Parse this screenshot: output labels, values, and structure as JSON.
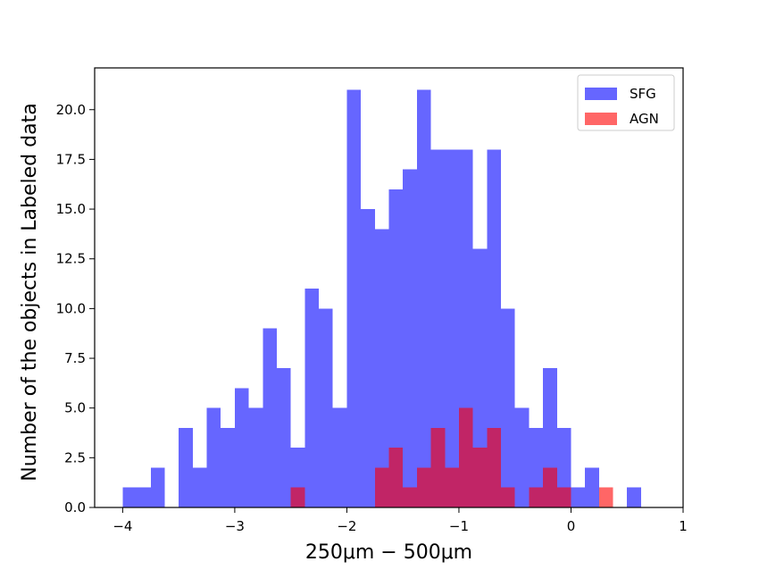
{
  "chart_data": {
    "type": "histogram",
    "xlabel": "250μm − 500μm",
    "ylabel": "Number of the objects in Labeled data",
    "xlim": [
      -4.25,
      1.0
    ],
    "ylim": [
      0,
      22.1
    ],
    "bin_width": 0.125,
    "x_ticks": [
      -4,
      -3,
      -2,
      -1,
      0,
      1
    ],
    "x_tick_labels": [
      "−4",
      "−3",
      "−2",
      "−1",
      "0",
      "1"
    ],
    "y_ticks": [
      0,
      2.5,
      5,
      7.5,
      10,
      12.5,
      15,
      17.5,
      20
    ],
    "y_tick_labels": [
      "0.0",
      "2.5",
      "5.0",
      "7.5",
      "10.0",
      "12.5",
      "15.0",
      "17.5",
      "20.0"
    ],
    "grid": false,
    "legend_position": "top-right",
    "series": [
      {
        "name": "SFG",
        "color": "#6666ff",
        "bins": [
          {
            "x": -4.0,
            "value": 1
          },
          {
            "x": -3.875,
            "value": 1
          },
          {
            "x": -3.75,
            "value": 2
          },
          {
            "x": -3.5,
            "value": 4
          },
          {
            "x": -3.375,
            "value": 2
          },
          {
            "x": -3.25,
            "value": 5
          },
          {
            "x": -3.125,
            "value": 4
          },
          {
            "x": -3.0,
            "value": 6
          },
          {
            "x": -2.875,
            "value": 5
          },
          {
            "x": -2.75,
            "value": 9
          },
          {
            "x": -2.625,
            "value": 7
          },
          {
            "x": -2.5,
            "value": 3
          },
          {
            "x": -2.375,
            "value": 11
          },
          {
            "x": -2.25,
            "value": 10
          },
          {
            "x": -2.125,
            "value": 5
          },
          {
            "x": -2.0,
            "value": 21
          },
          {
            "x": -1.875,
            "value": 15
          },
          {
            "x": -1.75,
            "value": 14
          },
          {
            "x": -1.625,
            "value": 16
          },
          {
            "x": -1.5,
            "value": 17
          },
          {
            "x": -1.375,
            "value": 21
          },
          {
            "x": -1.25,
            "value": 18
          },
          {
            "x": -1.125,
            "value": 18
          },
          {
            "x": -1.0,
            "value": 18
          },
          {
            "x": -0.875,
            "value": 13
          },
          {
            "x": -0.75,
            "value": 18
          },
          {
            "x": -0.625,
            "value": 10
          },
          {
            "x": -0.5,
            "value": 5
          },
          {
            "x": -0.375,
            "value": 4
          },
          {
            "x": -0.25,
            "value": 7
          },
          {
            "x": -0.125,
            "value": 4
          },
          {
            "x": 0.0,
            "value": 1
          },
          {
            "x": 0.125,
            "value": 2
          },
          {
            "x": 0.5,
            "value": 1
          }
        ]
      },
      {
        "name": "AGN",
        "color": "#ff6666",
        "bins": [
          {
            "x": -2.5,
            "value": 1
          },
          {
            "x": -1.75,
            "value": 2
          },
          {
            "x": -1.625,
            "value": 3
          },
          {
            "x": -1.5,
            "value": 1
          },
          {
            "x": -1.375,
            "value": 2
          },
          {
            "x": -1.25,
            "value": 4
          },
          {
            "x": -1.125,
            "value": 2
          },
          {
            "x": -1.0,
            "value": 5
          },
          {
            "x": -0.875,
            "value": 3
          },
          {
            "x": -0.75,
            "value": 4
          },
          {
            "x": -0.625,
            "value": 1
          },
          {
            "x": -0.375,
            "value": 1
          },
          {
            "x": -0.25,
            "value": 2
          },
          {
            "x": -0.125,
            "value": 1
          },
          {
            "x": 0.25,
            "value": 1
          }
        ]
      }
    ],
    "overlap_color": "#c12566"
  }
}
